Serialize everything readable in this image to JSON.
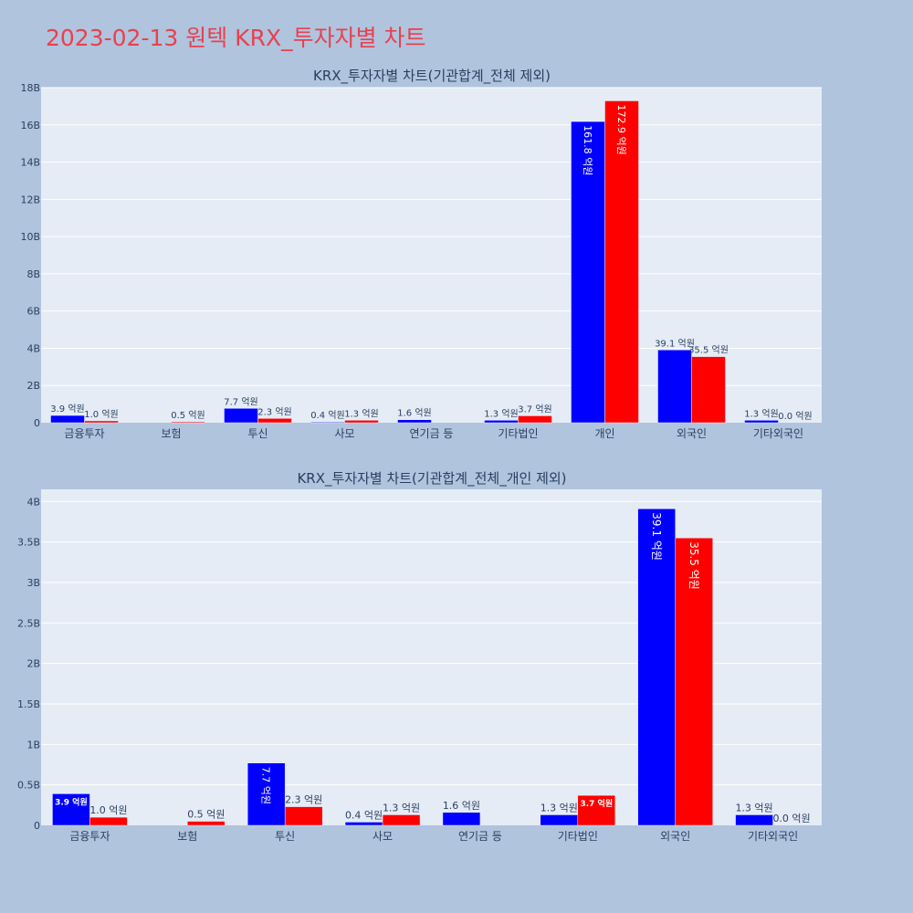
{
  "page_title": "2023-02-13 원텍 KRX_투자자별 차트",
  "colors": {
    "buy": "#0000ff",
    "sell": "#ff0000",
    "plot_bg": "#e5ecf6",
    "page_bg": "#b0c4de",
    "title": "#e8414f"
  },
  "chart_data": [
    {
      "type": "bar",
      "title": "KRX_투자자별 차트(기관합계_전체 제외)",
      "categories": [
        "금융투자",
        "보험",
        "투신",
        "사모",
        "연기금 등",
        "기타법인",
        "개인",
        "외국인",
        "기타외국인"
      ],
      "series": [
        {
          "color": "#0000ff",
          "values": [
            0.39,
            0,
            0.77,
            0.04,
            0.16,
            0.13,
            16.18,
            3.91,
            0.13
          ],
          "labels": [
            "3.9 억원",
            "",
            "7.7 억원",
            "0.4 억원",
            "1.6 억원",
            "1.3 억원",
            "161.8 억원",
            "39.1 억원",
            "1.3 억원"
          ]
        },
        {
          "color": "#ff0000",
          "values": [
            0.1,
            0.05,
            0.23,
            0.13,
            0,
            0.37,
            17.29,
            3.55,
            0.0
          ],
          "labels": [
            "1.0 억원",
            "0.5 억원",
            "2.3 억원",
            "1.3 억원",
            "",
            "3.7 억원",
            "172.9 억원",
            "35.5 억원",
            "0.0 억원"
          ]
        }
      ],
      "ylim": [
        0,
        18
      ],
      "yticks": [
        0,
        2,
        4,
        6,
        8,
        10,
        12,
        14,
        16,
        18
      ],
      "ytick_labels": [
        "0",
        "2B",
        "4B",
        "6B",
        "8B",
        "10B",
        "12B",
        "14B",
        "16B",
        "18B"
      ],
      "grid": true
    },
    {
      "type": "bar",
      "title": "KRX_투자자별 차트(기관합계_전체_개인 제외)",
      "categories": [
        "금융투자",
        "보험",
        "투신",
        "사모",
        "연기금 등",
        "기타법인",
        "외국인",
        "기타외국인"
      ],
      "series": [
        {
          "color": "#0000ff",
          "values": [
            0.39,
            0,
            0.77,
            0.04,
            0.16,
            0.13,
            3.91,
            0.13
          ],
          "labels": [
            "3.9 억원",
            "",
            "7.7 억원",
            "0.4 억원",
            "1.6 억원",
            "1.3 억원",
            "39.1 억원",
            "1.3 억원"
          ]
        },
        {
          "color": "#ff0000",
          "values": [
            0.1,
            0.05,
            0.23,
            0.13,
            0,
            0.37,
            3.55,
            0.0
          ],
          "labels": [
            "1.0 억원",
            "0.5 억원",
            "2.3 억원",
            "1.3 억원",
            "",
            "3.7 억원",
            "35.5 억원",
            "0.0 억원"
          ]
        }
      ],
      "ylim": [
        0,
        4.15
      ],
      "yticks": [
        0,
        0.5,
        1,
        1.5,
        2,
        2.5,
        3,
        3.5,
        4
      ],
      "ytick_labels": [
        "0",
        "0.5B",
        "1B",
        "1.5B",
        "2B",
        "2.5B",
        "3B",
        "3.5B",
        "4B"
      ],
      "grid": true
    }
  ]
}
